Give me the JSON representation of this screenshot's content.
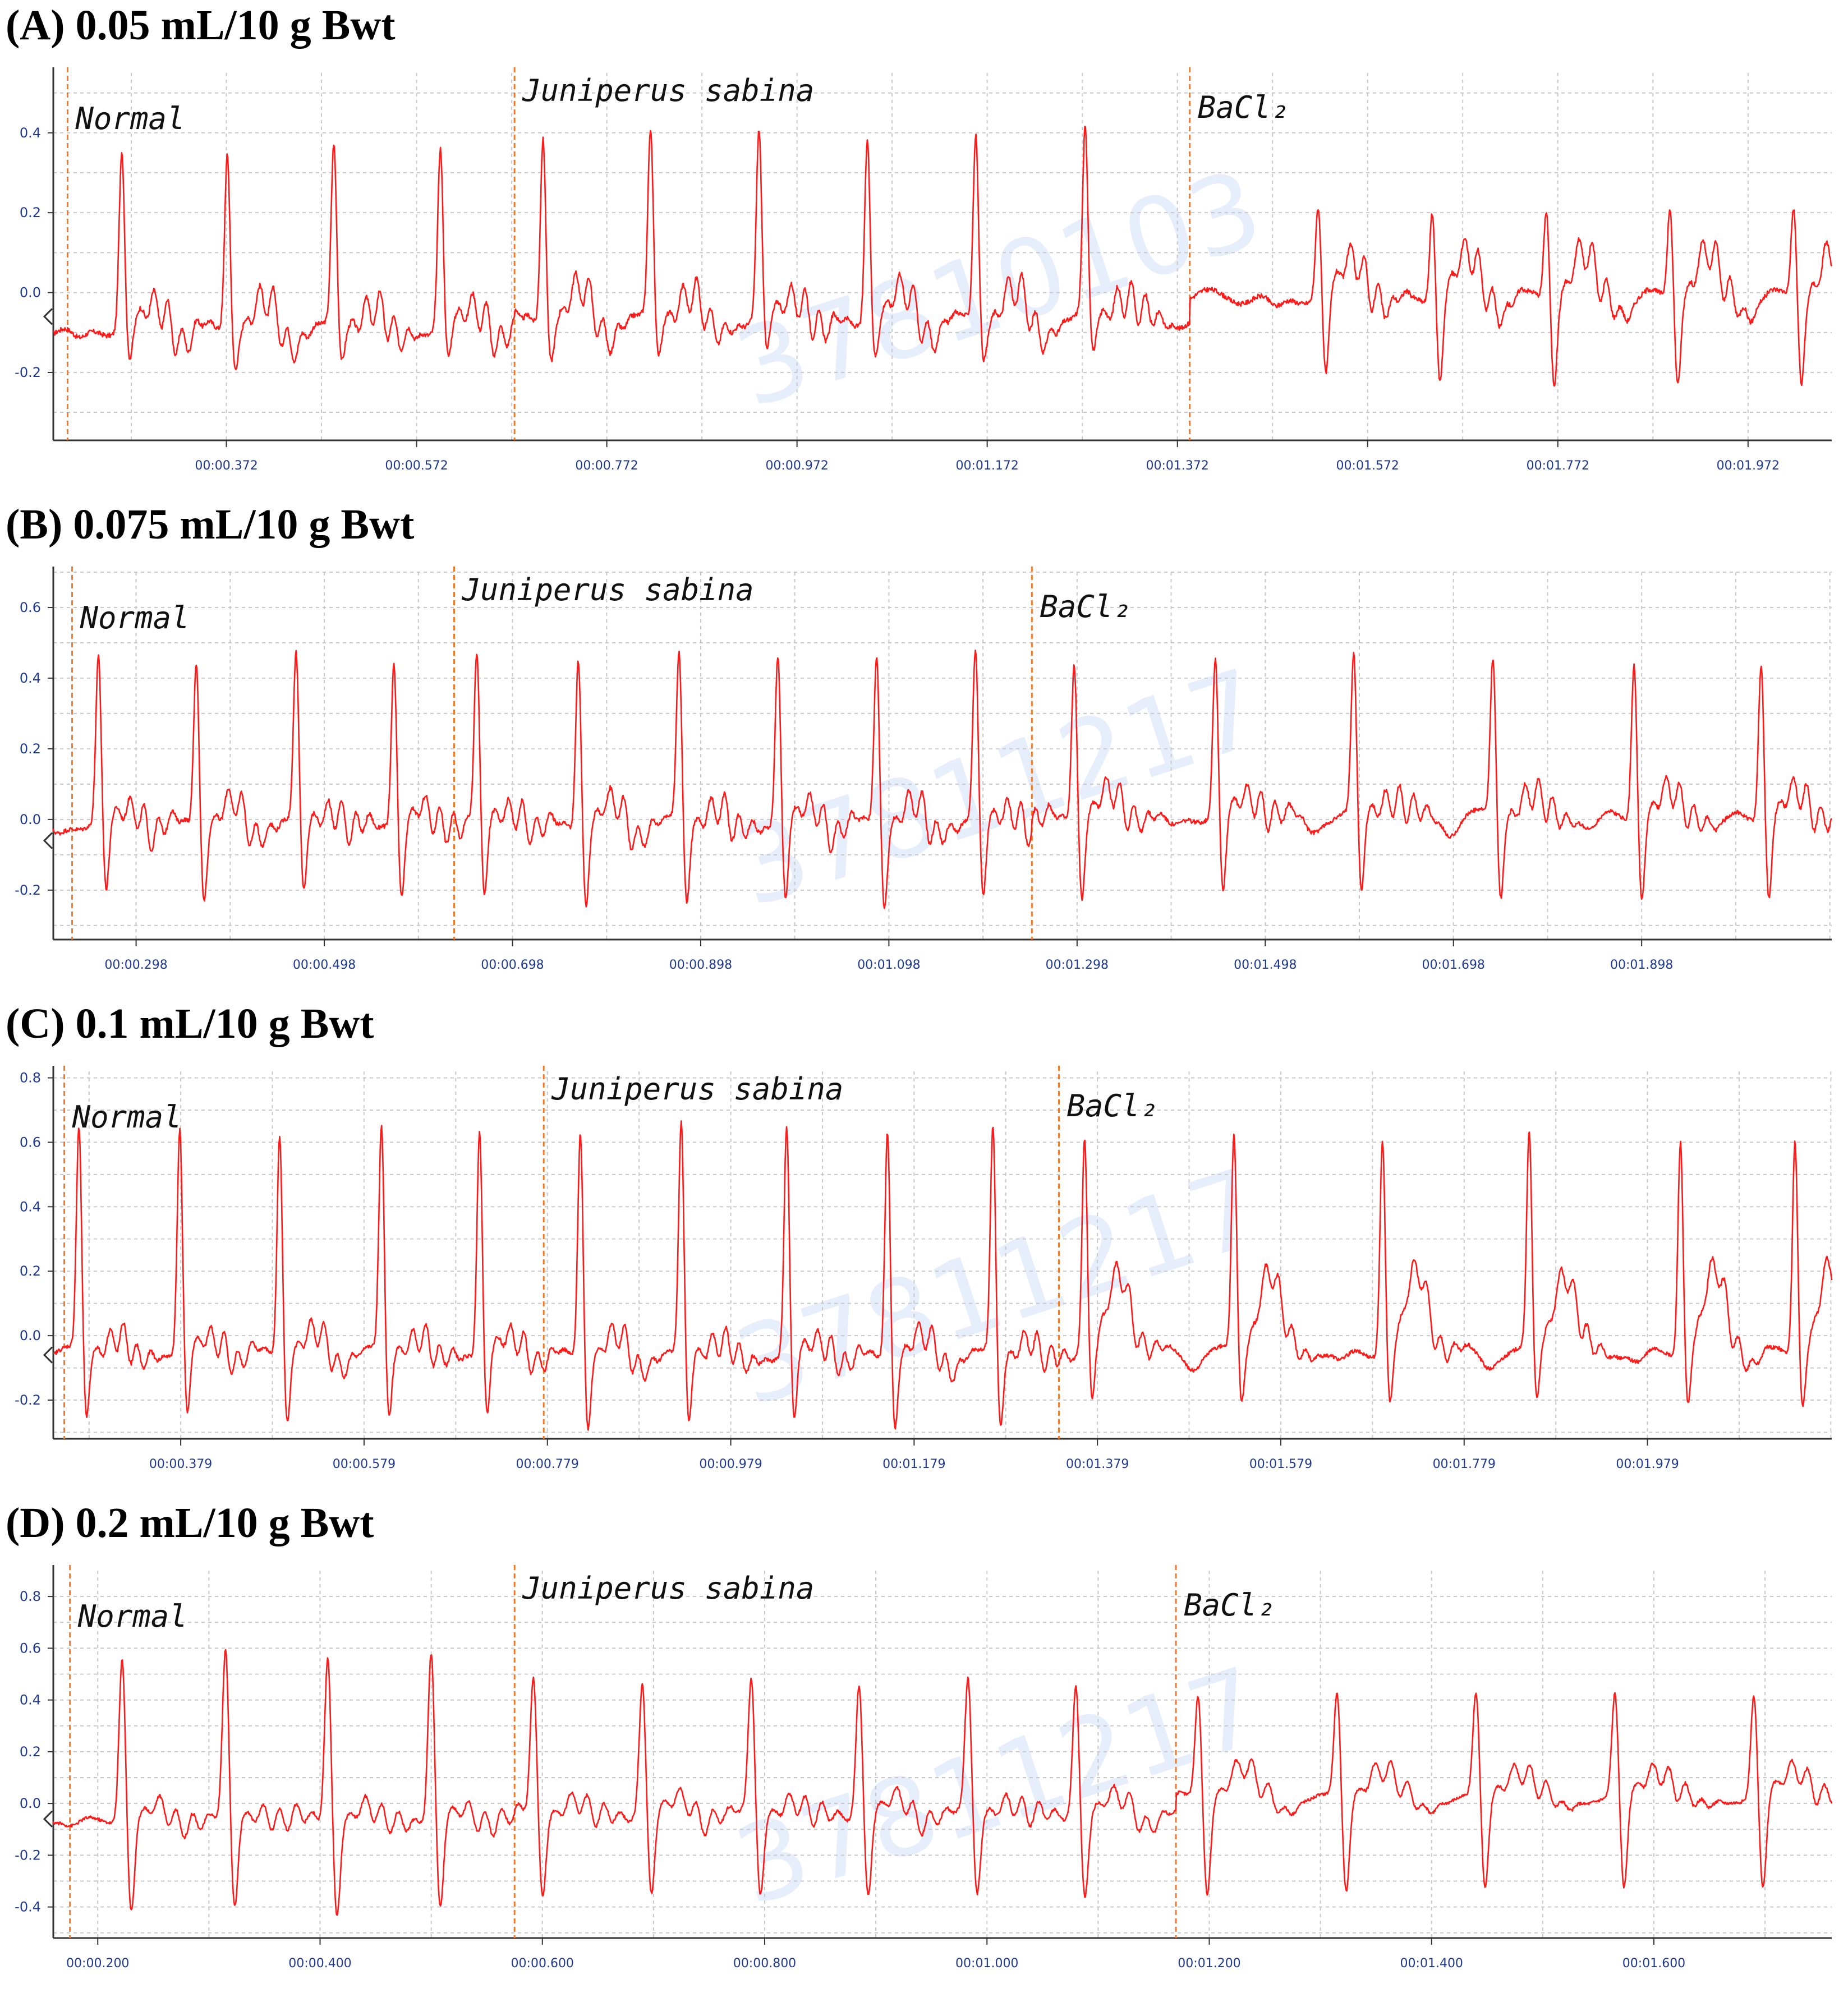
{
  "chart_data": [
    {
      "type": "line",
      "panel_label": "(A)",
      "dose": "0.05 mL/10 g Bwt",
      "yticks": [
        "0.4",
        "0.2",
        "0.0",
        "-0.2"
      ],
      "ytick_values": [
        0.4,
        0.2,
        0.0,
        -0.2
      ],
      "ylim": [
        -0.37,
        0.55
      ],
      "xticks": [
        "00:00.372",
        "00:00.572",
        "00:00.772",
        "00:00.972",
        "00:01.172",
        "00:01.372",
        "00:01.572",
        "00:01.772",
        "00:01.972"
      ],
      "xtick_values": [
        0.372,
        0.572,
        0.772,
        0.972,
        1.172,
        1.372,
        1.572,
        1.772,
        1.972
      ],
      "xlim": [
        0.19,
        2.06
      ],
      "watermark": "37810103",
      "markers": [
        {
          "label": "Normal",
          "x": 0.205
        },
        {
          "label": "Juniperus sabina",
          "x": 0.675
        },
        {
          "label": "BaCl₂",
          "x": 1.385
        }
      ],
      "series": [
        {
          "segment": "normal",
          "baseline": -0.09,
          "r_peak": 0.36,
          "s_trough": -0.18,
          "t_wave": 0.06,
          "beat_times": [
            0.262,
            0.373,
            0.485,
            0.597
          ]
        },
        {
          "segment": "juniperus",
          "baseline": -0.07,
          "r_peak": 0.4,
          "s_trough": -0.16,
          "t_wave": 0.07,
          "beat_times": [
            0.705,
            0.818,
            0.932,
            1.046,
            1.16,
            1.275
          ]
        },
        {
          "segment": "bacl2",
          "baseline": -0.01,
          "r_peak": 0.22,
          "s_trough": -0.22,
          "t_wave": 0.1,
          "beat_times": [
            1.52,
            1.64,
            1.76,
            1.89,
            2.02
          ]
        }
      ]
    },
    {
      "type": "line",
      "panel_label": "(B)",
      "dose": "0.075 mL/10 g Bwt",
      "yticks": [
        "0.6",
        "0.4",
        "0.2",
        "0.0",
        "-0.2"
      ],
      "ytick_values": [
        0.6,
        0.4,
        0.2,
        0.0,
        -0.2
      ],
      "ylim": [
        -0.34,
        0.7
      ],
      "xticks": [
        "00:00.298",
        "00:00.498",
        "00:00.698",
        "00:00.898",
        "00:01.098",
        "00:01.298",
        "00:01.498",
        "00:01.698",
        "00:01.898"
      ],
      "xtick_values": [
        0.298,
        0.498,
        0.698,
        0.898,
        1.098,
        1.298,
        1.498,
        1.698,
        1.898
      ],
      "xlim": [
        0.21,
        2.1
      ],
      "watermark": "37811217",
      "markers": [
        {
          "label": "Normal",
          "x": 0.23
        },
        {
          "label": "Juniperus sabina",
          "x": 0.636
        },
        {
          "label": "BaCl₂",
          "x": 1.25
        }
      ],
      "series": [
        {
          "segment": "normal",
          "baseline": -0.01,
          "r_peak": 0.46,
          "s_trough": -0.22,
          "t_wave": 0.05,
          "beat_times": [
            0.258,
            0.362,
            0.468,
            0.572
          ]
        },
        {
          "segment": "juniperus",
          "baseline": -0.01,
          "r_peak": 0.47,
          "s_trough": -0.24,
          "t_wave": 0.05,
          "beat_times": [
            0.66,
            0.768,
            0.875,
            0.98,
            1.085,
            1.19
          ]
        },
        {
          "segment": "bacl2",
          "baseline": 0.01,
          "r_peak": 0.46,
          "s_trough": -0.22,
          "t_wave": 0.06,
          "beat_times": [
            1.295,
            1.445,
            1.592,
            1.74,
            1.89,
            2.025
          ]
        }
      ]
    },
    {
      "type": "line",
      "panel_label": "(C)",
      "dose": "0.1 mL/10 g Bwt",
      "yticks": [
        "0.8",
        "0.6",
        "0.4",
        "0.2",
        "0.0",
        "-0.2"
      ],
      "ytick_values": [
        0.8,
        0.6,
        0.4,
        0.2,
        0.0,
        -0.2
      ],
      "ylim": [
        -0.32,
        0.82
      ],
      "xticks": [
        "00:00.379",
        "00:00.579",
        "00:00.779",
        "00:00.979",
        "00:01.179",
        "00:01.379",
        "00:01.579",
        "00:01.779",
        "00:01.979"
      ],
      "xtick_values": [
        0.379,
        0.579,
        0.779,
        0.979,
        1.179,
        1.379,
        1.579,
        1.779,
        1.979
      ],
      "xlim": [
        0.24,
        2.18
      ],
      "watermark": "37811217",
      "markers": [
        {
          "label": "Normal",
          "x": 0.252
        },
        {
          "label": "Juniperus sabina",
          "x": 0.775
        },
        {
          "label": "BaCl₂",
          "x": 1.337
        }
      ],
      "series": [
        {
          "segment": "normal",
          "baseline": -0.05,
          "r_peak": 0.64,
          "s_trough": -0.26,
          "t_wave": 0.05,
          "beat_times": [
            0.268,
            0.378,
            0.487,
            0.598,
            0.705
          ]
        },
        {
          "segment": "juniperus",
          "baseline": -0.06,
          "r_peak": 0.65,
          "s_trough": -0.28,
          "t_wave": 0.05,
          "beat_times": [
            0.815,
            0.925,
            1.04,
            1.15,
            1.265
          ]
        },
        {
          "segment": "bacl2",
          "baseline": -0.05,
          "r_peak": 0.62,
          "s_trough": -0.22,
          "t_wave": 0.25,
          "beat_times": [
            1.365,
            1.528,
            1.69,
            1.85,
            2.015,
            2.14
          ]
        }
      ]
    },
    {
      "type": "line",
      "panel_label": "(D)",
      "dose": "0.2 mL/10 g Bwt",
      "yticks": [
        "0.8",
        "0.6",
        "0.4",
        "0.2",
        "0.0",
        "-0.2",
        "-0.4"
      ],
      "ytick_values": [
        0.8,
        0.6,
        0.4,
        0.2,
        0.0,
        -0.2,
        -0.4
      ],
      "ylim": [
        -0.52,
        0.9
      ],
      "xticks": [
        "00:00.200",
        "00:00.400",
        "00:00.600",
        "00:00.800",
        "00:01.000",
        "00:01.200",
        "00:01.400",
        "00:01.600"
      ],
      "xtick_values": [
        0.2,
        0.4,
        0.6,
        0.8,
        1.0,
        1.2,
        1.4,
        1.6
      ],
      "xlim": [
        0.16,
        1.76
      ],
      "watermark": "37811217",
      "markers": [
        {
          "label": "Normal",
          "x": 0.175
        },
        {
          "label": "Juniperus sabina",
          "x": 0.575
        },
        {
          "label": "BaCl₂",
          "x": 1.17
        }
      ],
      "series": [
        {
          "segment": "normal",
          "baseline": -0.06,
          "r_peak": 0.58,
          "s_trough": -0.42,
          "t_wave": 0.05,
          "beat_times": [
            0.222,
            0.315,
            0.407,
            0.5
          ]
        },
        {
          "segment": "juniperus",
          "baseline": -0.04,
          "r_peak": 0.48,
          "s_trough": -0.36,
          "t_wave": 0.06,
          "beat_times": [
            0.592,
            0.69,
            0.788,
            0.885,
            0.983,
            1.08
          ]
        },
        {
          "segment": "bacl2",
          "baseline": 0.02,
          "r_peak": 0.42,
          "s_trough": -0.35,
          "t_wave": 0.12,
          "beat_times": [
            1.19,
            1.315,
            1.44,
            1.565,
            1.69
          ]
        }
      ]
    }
  ]
}
